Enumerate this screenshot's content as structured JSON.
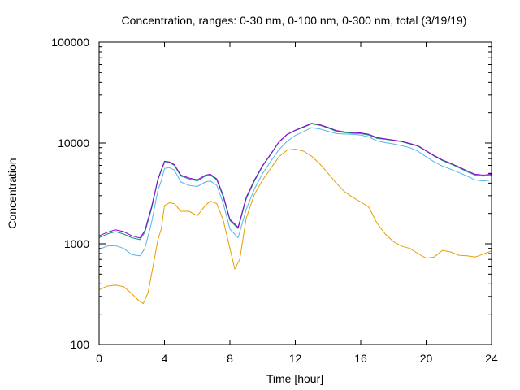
{
  "chart_data": {
    "type": "line",
    "title": "Concentration, ranges: 0-30 nm, 0-100 nm, 0-300 nm, total (3/19/19)",
    "xlabel": "Time [hour]",
    "ylabel": "Concentration",
    "xlim": [
      0,
      24
    ],
    "ylim": [
      100,
      100000
    ],
    "y_scale": "log",
    "grid": false,
    "x_ticks": [
      0,
      4,
      8,
      12,
      16,
      20,
      24
    ],
    "x_tick_labels": [
      "0",
      "4",
      "8",
      "12",
      "16",
      "20",
      "24"
    ],
    "y_ticks": [
      100,
      1000,
      10000,
      100000
    ],
    "y_tick_labels": [
      "100",
      "1000",
      "10000",
      "100000"
    ],
    "series": [
      {
        "color": "#e69f00",
        "x": [
          0,
          0.5,
          1,
          1.5,
          2,
          2.4,
          2.7,
          3,
          3.3,
          3.6,
          3.8,
          4,
          4.3,
          4.6,
          5,
          5.5,
          6,
          6.5,
          6.8,
          7.2,
          7.6,
          8,
          8.3,
          8.6,
          9,
          9.5,
          10,
          10.5,
          11,
          11.5,
          12,
          12.5,
          13,
          13.5,
          14,
          14.5,
          15,
          15.5,
          16,
          16.5,
          17,
          17.5,
          18,
          18.5,
          19,
          19.5,
          20,
          20.5,
          21,
          21.5,
          22,
          22.5,
          23,
          23.5,
          24
        ],
        "values": [
          350,
          380,
          390,
          375,
          320,
          275,
          255,
          330,
          600,
          1100,
          1400,
          2400,
          2550,
          2500,
          2100,
          2100,
          1900,
          2400,
          2650,
          2500,
          1700,
          900,
          560,
          700,
          1800,
          3100,
          4300,
          5600,
          7300,
          8500,
          8700,
          8300,
          7400,
          6200,
          5000,
          4000,
          3300,
          2900,
          2600,
          2300,
          1600,
          1250,
          1050,
          950,
          900,
          800,
          720,
          740,
          860,
          830,
          770,
          760,
          740,
          790,
          850
        ]
      },
      {
        "color": "#56b4e9",
        "x": [
          0,
          0.5,
          1,
          1.5,
          2,
          2.5,
          2.8,
          3.2,
          3.6,
          3.8,
          4,
          4.3,
          4.6,
          5,
          5.5,
          6,
          6.5,
          6.8,
          7.2,
          7.6,
          8,
          8.5,
          9,
          9.5,
          10,
          10.5,
          11,
          11.5,
          12,
          12.5,
          13,
          13.5,
          14,
          14.5,
          15,
          15.5,
          16,
          16.5,
          17,
          17.5,
          18,
          18.5,
          19,
          19.5,
          20,
          20.5,
          21,
          21.5,
          22,
          22.5,
          23,
          23.5,
          24
        ],
        "values": [
          880,
          950,
          960,
          900,
          780,
          760,
          900,
          1600,
          3400,
          4200,
          5600,
          5700,
          5400,
          4100,
          3800,
          3700,
          4100,
          4200,
          3800,
          2500,
          1400,
          1150,
          2200,
          3500,
          5000,
          6600,
          8600,
          10400,
          11900,
          13000,
          14200,
          13800,
          13100,
          12400,
          12300,
          12200,
          12000,
          11500,
          10500,
          10100,
          9800,
          9400,
          9000,
          8300,
          7300,
          6500,
          5900,
          5500,
          5100,
          4700,
          4300,
          4200,
          4300
        ]
      },
      {
        "color": "#009e73",
        "x": [
          0,
          0.5,
          1,
          1.5,
          2,
          2.5,
          2.8,
          3.2,
          3.6,
          3.8,
          4,
          4.3,
          4.6,
          5,
          5.5,
          6,
          6.5,
          6.8,
          7.2,
          7.6,
          8,
          8.5,
          9,
          9.5,
          10,
          10.5,
          11,
          11.5,
          12,
          12.5,
          13,
          13.5,
          14,
          14.5,
          15,
          15.5,
          16,
          16.5,
          17,
          17.5,
          18,
          18.5,
          19,
          19.5,
          20,
          20.5,
          21,
          21.5,
          22,
          22.5,
          23,
          23.5,
          24
        ],
        "values": [
          1150,
          1250,
          1320,
          1250,
          1150,
          1100,
          1300,
          2200,
          4300,
          5300,
          6400,
          6400,
          6000,
          4700,
          4400,
          4200,
          4700,
          4800,
          4300,
          2900,
          1700,
          1420,
          2800,
          4200,
          5900,
          7700,
          10200,
          12100,
          13300,
          14300,
          15500,
          15000,
          14100,
          13100,
          12700,
          12500,
          12400,
          12000,
          11100,
          10900,
          10600,
          10300,
          9800,
          9300,
          8300,
          7400,
          6700,
          6200,
          5700,
          5200,
          4800,
          4700,
          4800
        ]
      },
      {
        "color": "#9400d3",
        "x": [
          0,
          0.5,
          1,
          1.5,
          2,
          2.5,
          2.8,
          3.2,
          3.6,
          3.8,
          4,
          4.3,
          4.6,
          5,
          5.5,
          6,
          6.5,
          6.8,
          7.2,
          7.6,
          8,
          8.5,
          9,
          9.5,
          10,
          10.5,
          11,
          11.5,
          12,
          12.5,
          13,
          13.5,
          14,
          14.5,
          15,
          15.5,
          16,
          16.5,
          17,
          17.5,
          18,
          18.5,
          19,
          19.5,
          20,
          20.5,
          21,
          21.5,
          22,
          22.5,
          23,
          23.5,
          24
        ],
        "values": [
          1200,
          1300,
          1380,
          1320,
          1200,
          1140,
          1350,
          2300,
          4400,
          5400,
          6600,
          6500,
          6100,
          4800,
          4500,
          4300,
          4800,
          4900,
          4400,
          3000,
          1750,
          1460,
          2900,
          4300,
          6000,
          7800,
          10300,
          12200,
          13400,
          14500,
          15700,
          15200,
          14300,
          13300,
          12900,
          12700,
          12600,
          12200,
          11300,
          11000,
          10700,
          10400,
          9900,
          9400,
          8400,
          7500,
          6800,
          6300,
          5800,
          5300,
          4900,
          4800,
          4900
        ]
      }
    ]
  }
}
